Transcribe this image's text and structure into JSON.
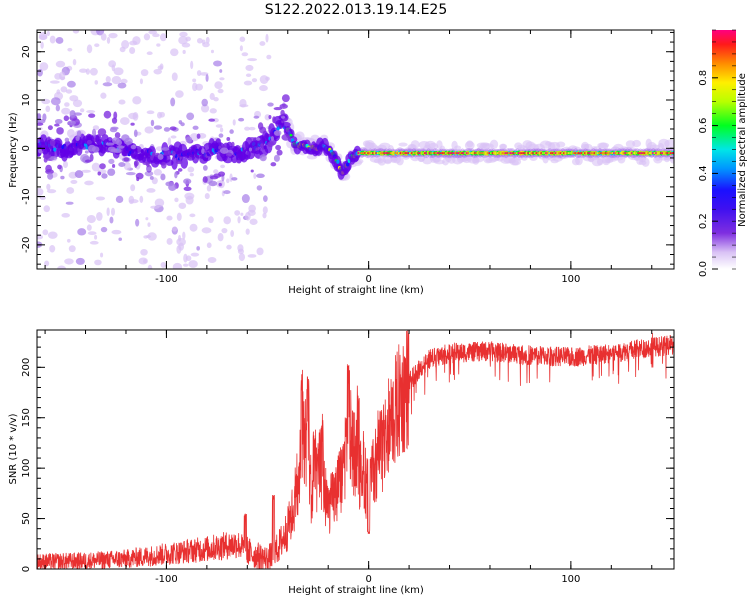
{
  "title": "S122.2022.013.19.14.E25",
  "colors": {
    "snr_line": "#e83030",
    "colormap": [
      "#ffffff",
      "#d9c2f5",
      "#a77ee8",
      "#7f2fe0",
      "#6200e6",
      "#1a10ff",
      "#0096ff",
      "#00e6e6",
      "#00ff20",
      "#b8ff00",
      "#ffef00",
      "#ff8c00",
      "#ff1a1a",
      "#ff007f"
    ]
  },
  "chart_data": [
    {
      "type": "heatmap",
      "title": "",
      "xlabel": "Height of straight line (km)",
      "ylabel": "Frequency (Hz)",
      "xlim": [
        -164,
        151
      ],
      "ylim": [
        -25,
        24.5
      ],
      "xticks": [
        -100,
        0,
        100
      ],
      "yticks": [
        -20,
        -10,
        0,
        10,
        20
      ],
      "colorbar": {
        "label": "Normalized spectral amplitude",
        "range": [
          0,
          1
        ],
        "ticks": [
          0.0,
          0.2,
          0.4,
          0.6,
          0.8
        ]
      },
      "ridge": {
        "description_points": [
          {
            "x": -164,
            "f": 0.5
          },
          {
            "x": -150,
            "f": 0.0
          },
          {
            "x": -135,
            "f": 1.0
          },
          {
            "x": -120,
            "f": -0.5
          },
          {
            "x": -105,
            "f": -1.5
          },
          {
            "x": -90,
            "f": -1.5
          },
          {
            "x": -75,
            "f": -0.5
          },
          {
            "x": -65,
            "f": -1.0
          },
          {
            "x": -58,
            "f": 0.0
          },
          {
            "x": -52,
            "f": 0.5
          },
          {
            "x": -47,
            "f": 3.0
          },
          {
            "x": -43,
            "f": 5.5
          },
          {
            "x": -40,
            "f": 4.0
          },
          {
            "x": -37,
            "f": 1.0
          },
          {
            "x": -33,
            "f": 0.5
          },
          {
            "x": -28,
            "f": 0.0
          },
          {
            "x": -22,
            "f": 0.5
          },
          {
            "x": -17,
            "f": -1.5
          },
          {
            "x": -13,
            "f": -5.0
          },
          {
            "x": -9,
            "f": -2.0
          },
          {
            "x": -5,
            "f": -1.0
          },
          {
            "x": 0,
            "f": -1.0
          },
          {
            "x": 50,
            "f": -1.0
          },
          {
            "x": 100,
            "f": -1.0
          },
          {
            "x": 151,
            "f": -1.0
          }
        ]
      }
    },
    {
      "type": "line",
      "title": "",
      "xlabel": "Height of straight line (km)",
      "ylabel": "SNR (10 * v/v)",
      "xlim": [
        -164,
        151
      ],
      "ylim": [
        0,
        237
      ],
      "xticks": [
        -100,
        0,
        100
      ],
      "yticks": [
        0,
        50,
        100,
        150,
        200
      ],
      "series": [
        {
          "color": "#e83030",
          "trend": [
            {
              "x": -164,
              "y": 7
            },
            {
              "x": -140,
              "y": 8
            },
            {
              "x": -120,
              "y": 10
            },
            {
              "x": -100,
              "y": 15
            },
            {
              "x": -80,
              "y": 20
            },
            {
              "x": -65,
              "y": 25
            },
            {
              "x": -58,
              "y": 15
            },
            {
              "x": -50,
              "y": 10
            },
            {
              "x": -45,
              "y": 20
            },
            {
              "x": -40,
              "y": 40
            },
            {
              "x": -35,
              "y": 75
            },
            {
              "x": -31,
              "y": 130
            },
            {
              "x": -28,
              "y": 70
            },
            {
              "x": -24,
              "y": 100
            },
            {
              "x": -20,
              "y": 60
            },
            {
              "x": -15,
              "y": 80
            },
            {
              "x": -9,
              "y": 130
            },
            {
              "x": -5,
              "y": 100
            },
            {
              "x": 0,
              "y": 80
            },
            {
              "x": 5,
              "y": 110
            },
            {
              "x": 10,
              "y": 140
            },
            {
              "x": 15,
              "y": 165
            },
            {
              "x": 20,
              "y": 185
            },
            {
              "x": 25,
              "y": 198
            },
            {
              "x": 30,
              "y": 208
            },
            {
              "x": 40,
              "y": 214
            },
            {
              "x": 60,
              "y": 216
            },
            {
              "x": 80,
              "y": 212
            },
            {
              "x": 100,
              "y": 210
            },
            {
              "x": 120,
              "y": 214
            },
            {
              "x": 140,
              "y": 220
            },
            {
              "x": 151,
              "y": 222
            }
          ],
          "spikes": [
            {
              "x": -61,
              "y": 55
            },
            {
              "x": -47,
              "y": 75
            },
            {
              "x": -33,
              "y": 200
            },
            {
              "x": -30,
              "y": 195
            },
            {
              "x": -27,
              "y": 140
            },
            {
              "x": -23,
              "y": 155
            },
            {
              "x": -10,
              "y": 210
            },
            {
              "x": -5,
              "y": 190
            },
            {
              "x": 0,
              "y": 40
            },
            {
              "x": 140,
              "y": 235
            }
          ]
        }
      ]
    }
  ]
}
